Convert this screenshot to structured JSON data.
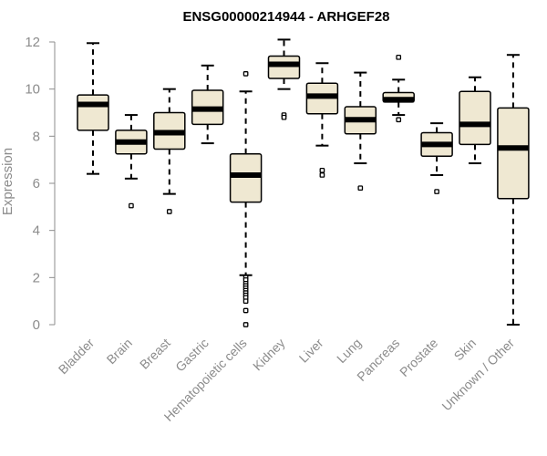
{
  "chart_data": {
    "type": "boxplot",
    "title": "ENSG00000214944 - ARHGEF28",
    "xlabel": "",
    "ylabel": "Expression",
    "ylim": [
      0,
      12
    ],
    "yticks": [
      0,
      2,
      4,
      6,
      8,
      10,
      12
    ],
    "ytick_labels": [
      "0",
      "2",
      "4",
      "6",
      "8",
      "10",
      "12"
    ],
    "box_fill": "#efe8d2",
    "categories": [
      "Bladder",
      "Brain",
      "Breast",
      "Gastric",
      "Hematopoietic cells",
      "Kidney",
      "Liver",
      "Lung",
      "Pancreas",
      "Prostate",
      "Skin",
      "Unknown / Other"
    ],
    "boxes": [
      {
        "name": "Bladder",
        "whisker_low": 6.4,
        "q1": 8.25,
        "median": 9.35,
        "q3": 9.75,
        "whisker_high": 11.95,
        "outliers": []
      },
      {
        "name": "Brain",
        "whisker_low": 6.2,
        "q1": 7.25,
        "median": 7.75,
        "q3": 8.25,
        "whisker_high": 8.9,
        "outliers": [
          5.05
        ]
      },
      {
        "name": "Breast",
        "whisker_low": 5.55,
        "q1": 7.45,
        "median": 8.15,
        "q3": 9.0,
        "whisker_high": 10.0,
        "outliers": [
          4.8
        ]
      },
      {
        "name": "Gastric",
        "whisker_low": 7.7,
        "q1": 8.5,
        "median": 9.15,
        "q3": 9.95,
        "whisker_high": 11.0,
        "outliers": []
      },
      {
        "name": "Hematopoietic cells",
        "whisker_low": 2.1,
        "q1": 5.2,
        "median": 6.35,
        "q3": 7.25,
        "whisker_high": 9.9,
        "outliers": [
          10.65,
          2.0,
          1.9,
          1.75,
          1.65,
          1.55,
          1.45,
          1.35,
          1.25,
          1.15,
          1.0,
          0.6,
          0.0
        ]
      },
      {
        "name": "Kidney",
        "whisker_low": 10.0,
        "q1": 10.45,
        "median": 11.05,
        "q3": 11.4,
        "whisker_high": 12.1,
        "outliers": [
          8.9,
          8.8
        ]
      },
      {
        "name": "Liver",
        "whisker_low": 7.6,
        "q1": 8.95,
        "median": 9.7,
        "q3": 10.25,
        "whisker_high": 11.1,
        "outliers": [
          6.55,
          6.35
        ]
      },
      {
        "name": "Lung",
        "whisker_low": 6.85,
        "q1": 8.1,
        "median": 8.7,
        "q3": 9.25,
        "whisker_high": 10.7,
        "outliers": [
          5.8
        ]
      },
      {
        "name": "Pancreas",
        "whisker_low": 8.9,
        "q1": 9.45,
        "median": 9.55,
        "q3": 9.85,
        "whisker_high": 10.4,
        "outliers": [
          11.35,
          8.7
        ]
      },
      {
        "name": "Prostate",
        "whisker_low": 6.35,
        "q1": 7.15,
        "median": 7.65,
        "q3": 8.15,
        "whisker_high": 8.55,
        "outliers": [
          5.65
        ]
      },
      {
        "name": "Skin",
        "whisker_low": 6.85,
        "q1": 7.65,
        "median": 8.5,
        "q3": 9.9,
        "whisker_high": 10.5,
        "outliers": []
      },
      {
        "name": "Unknown / Other",
        "whisker_low": 0.0,
        "q1": 5.35,
        "median": 7.5,
        "q3": 9.2,
        "whisker_high": 11.45,
        "outliers": []
      }
    ]
  }
}
